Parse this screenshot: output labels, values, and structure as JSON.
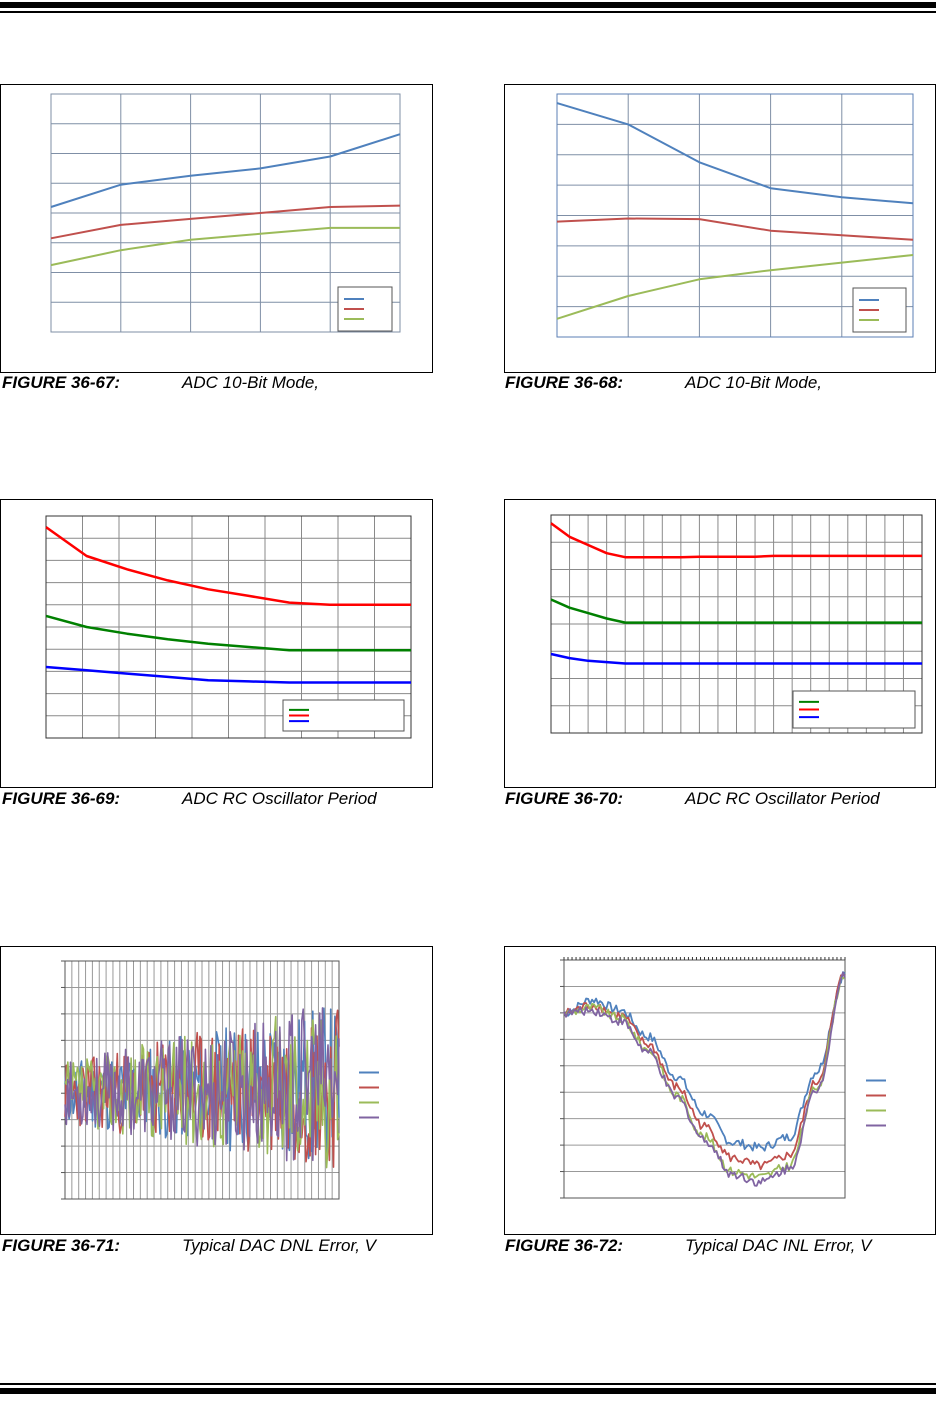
{
  "figures": [
    {
      "label": "FIGURE 36-67:",
      "title": "ADC 10-Bit Mode,"
    },
    {
      "label": "FIGURE 36-68:",
      "title": "ADC 10-Bit Mode,"
    },
    {
      "label": "FIGURE 36-69:",
      "title": "ADC RC Oscillator Period"
    },
    {
      "label": "FIGURE 36-70:",
      "title": "ADC RC Oscillator Period"
    },
    {
      "label": "FIGURE 36-71:",
      "title": "Typical DAC DNL Error, V"
    },
    {
      "label": "FIGURE 36-72:",
      "title": "Typical DAC INL Error, V"
    }
  ],
  "chart_data": [
    {
      "type": "line",
      "x": [
        0,
        1,
        2,
        3,
        4,
        5
      ],
      "ylim": [
        0,
        8
      ],
      "grid": true,
      "legend": "bottom-right",
      "series": [
        {
          "color": "#4f81bd",
          "values": [
            4.2,
            4.95,
            5.25,
            5.5,
            5.9,
            6.65
          ]
        },
        {
          "color": "#c0504d",
          "values": [
            3.15,
            3.6,
            3.8,
            4.0,
            4.2,
            4.25
          ]
        },
        {
          "color": "#9bbb59",
          "values": [
            2.25,
            2.75,
            3.1,
            3.3,
            3.5,
            3.5
          ]
        }
      ]
    },
    {
      "type": "line",
      "x": [
        0,
        1,
        2,
        3,
        4,
        5
      ],
      "ylim": [
        0,
        8
      ],
      "grid": true,
      "legend": "bottom-right",
      "series": [
        {
          "color": "#4f81bd",
          "values": [
            7.7,
            7.0,
            5.75,
            4.9,
            4.6,
            4.4
          ]
        },
        {
          "color": "#c0504d",
          "values": [
            3.8,
            3.9,
            3.88,
            3.5,
            3.35,
            3.2
          ]
        },
        {
          "color": "#9bbb59",
          "values": [
            0.6,
            1.35,
            1.9,
            2.2,
            2.45,
            2.7
          ]
        }
      ]
    },
    {
      "type": "line",
      "x": [
        0,
        1,
        2,
        3,
        4,
        5,
        6,
        7,
        8,
        9
      ],
      "ylim": [
        0,
        10
      ],
      "grid": true,
      "legend": "bottom-right",
      "series": [
        {
          "color": "#008000",
          "values": [
            5.5,
            5.0,
            4.7,
            4.45,
            4.25,
            4.1,
            3.95,
            3.95,
            3.95,
            3.95
          ]
        },
        {
          "color": "#ff0000",
          "values": [
            9.5,
            8.2,
            7.6,
            7.1,
            6.7,
            6.4,
            6.1,
            6.0,
            6.0,
            6.0
          ]
        },
        {
          "color": "#0000ff",
          "values": [
            3.2,
            3.05,
            2.9,
            2.75,
            2.6,
            2.55,
            2.5,
            2.5,
            2.5,
            2.5
          ]
        }
      ]
    },
    {
      "type": "line",
      "x": [
        0,
        1,
        2,
        3,
        4,
        5,
        6,
        7,
        8,
        9,
        10,
        11,
        12,
        13,
        14,
        15,
        16,
        17,
        18,
        19,
        20
      ],
      "ylim": [
        0,
        8
      ],
      "grid": true,
      "legend": "bottom-right",
      "series": [
        {
          "color": "#008000",
          "values": [
            4.9,
            4.6,
            4.4,
            4.2,
            4.05,
            4.05,
            4.05,
            4.05,
            4.05,
            4.05,
            4.05,
            4.05,
            4.05,
            4.05,
            4.05,
            4.05,
            4.05,
            4.05,
            4.05,
            4.05,
            4.05
          ]
        },
        {
          "color": "#ff0000",
          "values": [
            7.7,
            7.2,
            6.9,
            6.6,
            6.45,
            6.45,
            6.45,
            6.45,
            6.47,
            6.47,
            6.47,
            6.47,
            6.5,
            6.5,
            6.5,
            6.5,
            6.5,
            6.5,
            6.5,
            6.5,
            6.5
          ]
        },
        {
          "color": "#0000ff",
          "values": [
            2.9,
            2.75,
            2.65,
            2.6,
            2.55,
            2.55,
            2.55,
            2.55,
            2.55,
            2.55,
            2.55,
            2.55,
            2.55,
            2.55,
            2.55,
            2.55,
            2.55,
            2.55,
            2.55,
            2.55,
            2.55
          ]
        }
      ]
    },
    {
      "type": "line",
      "ylim": [
        -4,
        5
      ],
      "grid": true,
      "legend": "right",
      "points_per_series": 200,
      "series": [
        {
          "color": "#4f81bd",
          "seed": 11
        },
        {
          "color": "#c0504d",
          "seed": 23
        },
        {
          "color": "#9bbb59",
          "seed": 37
        },
        {
          "color": "#8064a2",
          "seed": 53
        }
      ]
    },
    {
      "type": "line",
      "x": [
        0,
        1,
        2,
        3,
        4,
        5,
        6,
        7,
        8,
        9,
        10
      ],
      "ylim": [
        0,
        9
      ],
      "grid": true,
      "legend": "right",
      "series": [
        {
          "color": "#4f81bd",
          "values": [
            7.0,
            7.5,
            7.1,
            6.1,
            4.6,
            3.2,
            2.1,
            1.9,
            2.3,
            4.8,
            8.5
          ]
        },
        {
          "color": "#c0504d",
          "values": [
            7.0,
            7.3,
            6.9,
            5.8,
            4.2,
            2.7,
            1.5,
            1.2,
            1.6,
            4.4,
            8.5
          ]
        },
        {
          "color": "#9bbb59",
          "values": [
            7.0,
            7.2,
            6.8,
            5.6,
            3.9,
            2.3,
            1.0,
            0.8,
            1.2,
            4.2,
            8.5
          ]
        },
        {
          "color": "#8064a2",
          "values": [
            7.0,
            7.1,
            6.7,
            5.5,
            3.8,
            2.2,
            0.9,
            0.6,
            1.1,
            4.1,
            8.5
          ]
        }
      ]
    }
  ]
}
